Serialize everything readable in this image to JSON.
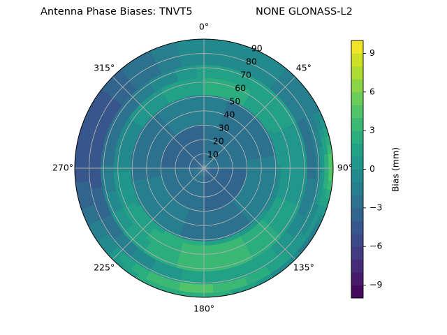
{
  "chart_data": {
    "type": "heatmap",
    "projection": "polar",
    "title_left": "Antenna Phase Biases: TNVT5",
    "title_right": "NONE GLONASS-L2",
    "azimuth_ticks": [
      "0°",
      "45°",
      "90°",
      "135°",
      "180°",
      "225°",
      "270°",
      "315°"
    ],
    "zenith_ticks": [
      "10",
      "20",
      "30",
      "40",
      "50",
      "60",
      "70",
      "80",
      "90"
    ],
    "radial_range": [
      0,
      90
    ],
    "grid": true,
    "colorbar": {
      "label": "Bias (mm)",
      "range": [
        -10,
        10
      ],
      "ticks": [
        "−9",
        "−6",
        "−3",
        "0",
        "3",
        "6",
        "9"
      ],
      "tick_values": [
        -9,
        -6,
        -3,
        0,
        3,
        6,
        9
      ],
      "colormap": "viridis",
      "levels": 20
    },
    "field_description_values": {
      "inner_ring_0_30": -3,
      "ring_30_50": -2,
      "ring_55_70": 1,
      "outer_west_northwest": -4,
      "outer_east_rim": 8,
      "southeast_lobe": 2
    }
  }
}
